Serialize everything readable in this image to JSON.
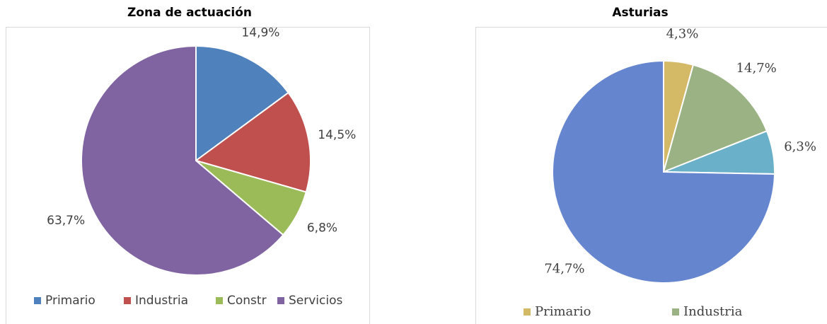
{
  "chart_data": [
    {
      "type": "pie",
      "title": "Zona de actuación",
      "categories": [
        "Primario",
        "Industria",
        "Constr",
        "Servicios"
      ],
      "values": [
        14.9,
        14.5,
        6.8,
        63.7
      ],
      "value_labels": [
        "14,9%",
        "14,5%",
        "6,8%",
        "63,7%"
      ],
      "colors": [
        "#4f81bd",
        "#c0504d",
        "#9bbb59",
        "#8064a2"
      ],
      "legend": "bottom"
    },
    {
      "type": "pie",
      "title": "Asturias",
      "categories": [
        "Primario",
        "Industria",
        null,
        null
      ],
      "values": [
        4.3,
        14.7,
        6.3,
        74.7
      ],
      "value_labels": [
        "4,3%",
        "14,7%",
        "6,3%",
        "74,7%"
      ],
      "colors": [
        "#d4b966",
        "#9bb384",
        "#6ab0c8",
        "#6585cf"
      ],
      "legend": "bottom"
    }
  ]
}
